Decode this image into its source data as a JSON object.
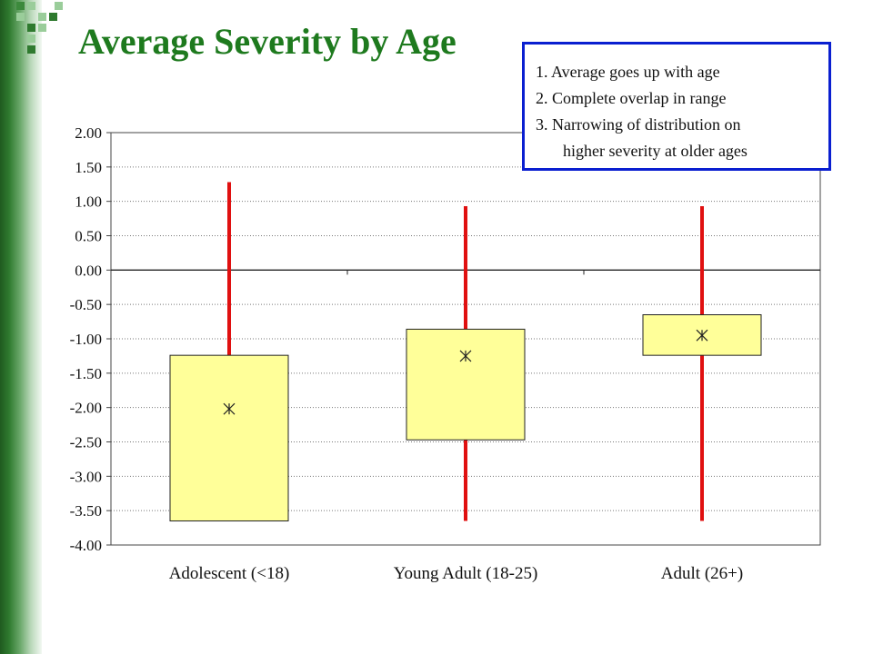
{
  "slide": {
    "title": "Average Severity by Age",
    "notes": [
      "1. Average goes up with age",
      "2. Complete overlap in range",
      "3. Narrowing of distribution on",
      "higher severity at older ages"
    ],
    "colors": {
      "title": "#1e7a1e",
      "box_fill": "#ffff99",
      "whisker": "#e01010",
      "note_border": "#0a1fd0"
    }
  },
  "chart_data": {
    "type": "box",
    "title": "",
    "xlabel": "",
    "ylabel": "",
    "ylim": [
      -4.0,
      2.0
    ],
    "yticks": [
      2.0,
      1.5,
      1.0,
      0.5,
      0.0,
      -0.5,
      -1.0,
      -1.5,
      -2.0,
      -2.5,
      -3.0,
      -3.5,
      -4.0
    ],
    "ytick_labels": [
      "2.00",
      "1.50",
      "1.00",
      "0.50",
      "0.00",
      "-0.50",
      "-1.00",
      "-1.50",
      "-2.00",
      "-2.50",
      "-3.00",
      "-3.50",
      "-4.00"
    ],
    "grid": true,
    "categories": [
      "Adolescent (<18)",
      "Young Adult (18-25)",
      "Adult (26+)"
    ],
    "boxes": [
      {
        "min": -3.65,
        "q1": -3.65,
        "mean": -2.02,
        "q3": -1.24,
        "max": 1.28
      },
      {
        "min": -3.65,
        "q1": -2.47,
        "mean": -1.25,
        "q3": -0.86,
        "max": 0.93
      },
      {
        "min": -3.65,
        "q1": -1.24,
        "mean": -0.95,
        "q3": -0.65,
        "max": 0.93
      }
    ]
  }
}
